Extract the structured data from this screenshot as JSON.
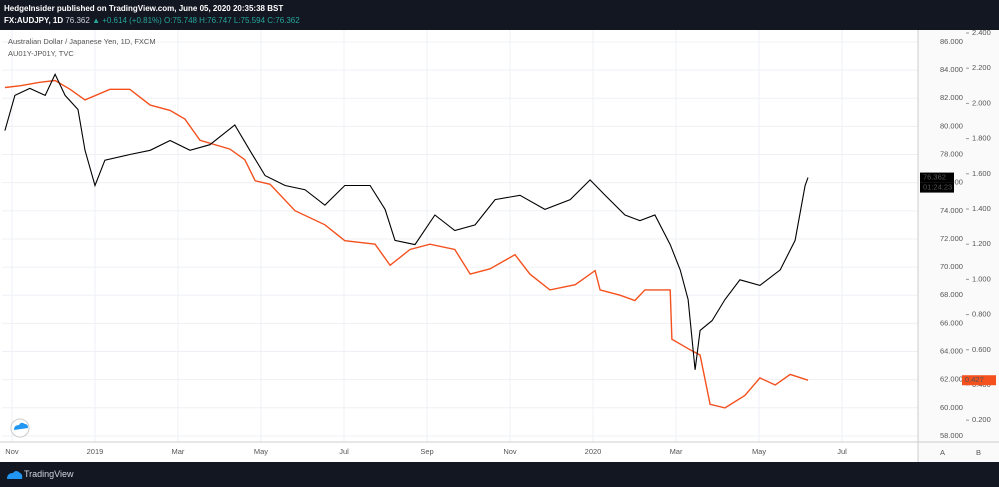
{
  "header": {
    "publisher": "HedgeInsider published on TradingView.com, June 05, 2020 20:35:38 BST",
    "symbol": "FX:AUDJPY, 1D",
    "last": "76.362",
    "change": "▲ +0.614 (+0.81%)",
    "ohlc": "O:75.748 H:76.747 L:75.594 C:76.362"
  },
  "footer": {
    "brand": "TradingView",
    "buttons": [
      "A",
      "B"
    ]
  },
  "chart_data": {
    "type": "line",
    "legend": [
      "Australian Dollar / Japanese Yen, 1D, FXCM",
      "AU01Y-JP01Y, TVC"
    ],
    "countdown": "01:24:23",
    "xlim": [
      -0.24,
      21.83
    ],
    "xticks": [
      {
        "value": 0,
        "label": "Nov"
      },
      {
        "value": 2,
        "label": "2019"
      },
      {
        "value": 4,
        "label": "Mar"
      },
      {
        "value": 6,
        "label": "May"
      },
      {
        "value": 8,
        "label": "Jul"
      },
      {
        "value": 10,
        "label": "Sep"
      },
      {
        "value": 12,
        "label": "Nov"
      },
      {
        "value": 14,
        "label": "2020"
      },
      {
        "value": 16,
        "label": "Mar"
      },
      {
        "value": 18,
        "label": "May"
      },
      {
        "value": 20,
        "label": "Jul"
      }
    ],
    "ylim": [
      57.57,
      86.85
    ],
    "yticks": [
      58,
      60,
      62,
      64,
      66,
      68,
      70,
      72,
      74,
      76,
      78,
      80,
      82,
      84,
      86
    ],
    "yticks_labels": [
      "58.000",
      "60.000",
      "62.000",
      "64.000",
      "66.000",
      "68.000",
      "70.000",
      "72.000",
      "74.000",
      "76.000",
      "78.000",
      "80.000",
      "82.000",
      "84.000",
      "86.000"
    ],
    "y2lim": [
      0.076,
      2.417
    ],
    "y2ticks": [
      {
        "value": 0.2,
        "label": "0.200"
      },
      {
        "value": 0.4,
        "label": "0.400"
      },
      {
        "value": 0.6,
        "label": "0.600"
      },
      {
        "value": 0.8,
        "label": "0.800"
      },
      {
        "value": 1.0,
        "label": "1.000"
      },
      {
        "value": 1.2,
        "label": "1.200"
      },
      {
        "value": 1.4,
        "label": "1.400"
      },
      {
        "value": 1.6,
        "label": "1.600"
      },
      {
        "value": 1.8,
        "label": "1.800"
      },
      {
        "value": 2.0,
        "label": "2.000"
      },
      {
        "value": 2.2,
        "label": "2.200"
      },
      {
        "value": 2.4,
        "label": "2.400"
      }
    ],
    "grid": true,
    "series": [
      {
        "name": "Australian Dollar / Japanese Yen, 1D, FXCM",
        "color": "#000000",
        "axis": "y",
        "last_value_label": "76.362",
        "x": [
          -0.17,
          0.07,
          0.43,
          0.8,
          1.04,
          1.28,
          1.59,
          1.76,
          2.0,
          2.24,
          2.84,
          3.33,
          3.81,
          4.29,
          4.77,
          5.37,
          5.73,
          6.1,
          6.58,
          7.06,
          7.54,
          8.02,
          8.63,
          8.99,
          9.23,
          9.71,
          10.19,
          10.67,
          11.16,
          11.64,
          12.24,
          12.84,
          13.45,
          13.93,
          14.29,
          14.77,
          15.13,
          15.49,
          15.86,
          16.1,
          16.29,
          16.46,
          16.58,
          16.87,
          17.18,
          17.54,
          18.02,
          18.51,
          18.87,
          19.11,
          19.18
        ],
        "values": [
          79.7,
          82.2,
          82.7,
          82.2,
          83.7,
          82.2,
          81.2,
          78.3,
          75.8,
          77.6,
          78.0,
          78.3,
          79.0,
          78.3,
          78.7,
          80.1,
          78.3,
          76.5,
          75.8,
          75.5,
          74.4,
          75.8,
          75.8,
          74.1,
          71.9,
          71.6,
          73.7,
          72.6,
          73.0,
          74.8,
          75.1,
          74.1,
          74.8,
          76.2,
          75.1,
          73.7,
          73.3,
          73.7,
          71.6,
          69.8,
          67.7,
          62.7,
          65.5,
          66.2,
          67.7,
          69.1,
          68.7,
          69.8,
          71.9,
          75.8,
          76.362
        ]
      },
      {
        "name": "AU01Y-JP01Y, TVC",
        "color": "#f4511e",
        "axis": "y2",
        "last_value_label": "0.427",
        "x": [
          -0.17,
          0.19,
          0.67,
          1.04,
          1.4,
          1.76,
          2.36,
          2.84,
          3.33,
          3.81,
          4.17,
          4.53,
          5.25,
          5.61,
          5.86,
          6.22,
          6.82,
          7.54,
          8.02,
          8.75,
          9.11,
          9.59,
          10.07,
          10.67,
          11.04,
          11.52,
          12.12,
          12.48,
          12.96,
          13.57,
          14.05,
          14.17,
          14.65,
          15.01,
          15.25,
          15.86,
          15.9,
          16.34,
          16.58,
          16.82,
          17.18,
          17.66,
          18.02,
          18.39,
          18.75,
          19.18
        ],
        "values": [
          2.09,
          2.1,
          2.12,
          2.13,
          2.08,
          2.02,
          2.08,
          2.08,
          1.99,
          1.96,
          1.91,
          1.79,
          1.74,
          1.68,
          1.56,
          1.54,
          1.39,
          1.31,
          1.22,
          1.2,
          1.08,
          1.17,
          1.2,
          1.17,
          1.03,
          1.06,
          1.14,
          1.03,
          0.94,
          0.97,
          1.05,
          0.94,
          0.91,
          0.88,
          0.94,
          0.94,
          0.66,
          0.6,
          0.57,
          0.29,
          0.27,
          0.34,
          0.44,
          0.4,
          0.46,
          0.427
        ]
      }
    ]
  }
}
